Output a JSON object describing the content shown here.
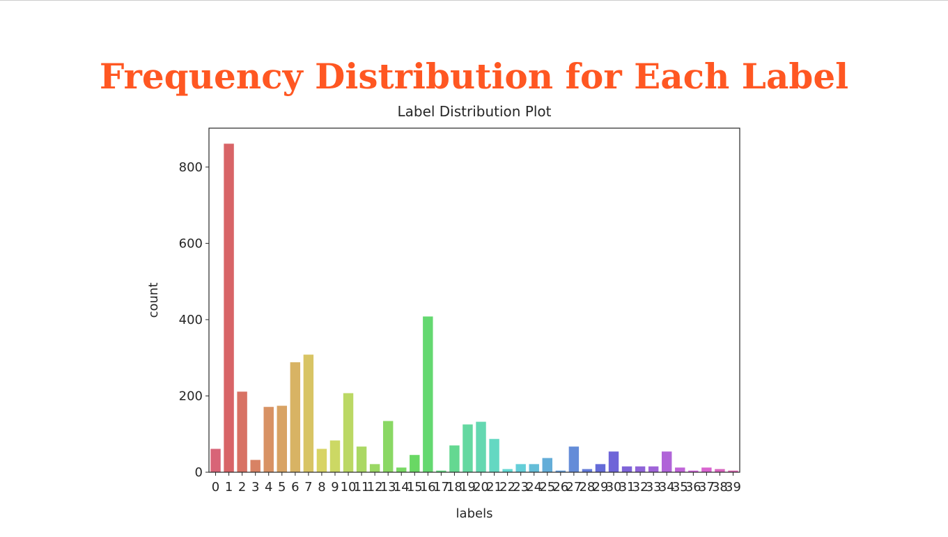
{
  "banner": {
    "title": "Frequency Distribution for Each Label",
    "color": "#FF5722"
  },
  "chart_data": {
    "type": "bar",
    "title": "Label Distribution Plot",
    "xlabel": "labels",
    "ylabel": "count",
    "ylim": [
      0,
      902
    ],
    "yticks": [
      0,
      200,
      400,
      600,
      800
    ],
    "grid": false,
    "palette": "husl",
    "categories": [
      "0",
      "1",
      "2",
      "3",
      "4",
      "5",
      "6",
      "7",
      "8",
      "9",
      "10",
      "11",
      "12",
      "13",
      "14",
      "15",
      "16",
      "17",
      "18",
      "19",
      "20",
      "21",
      "22",
      "23",
      "24",
      "25",
      "26",
      "27",
      "28",
      "29",
      "30",
      "31",
      "32",
      "33",
      "34",
      "35",
      "36",
      "37",
      "38",
      "39"
    ],
    "values": [
      62,
      862,
      212,
      33,
      172,
      175,
      289,
      309,
      62,
      84,
      208,
      68,
      22,
      135,
      13,
      46,
      409,
      5,
      71,
      126,
      133,
      88,
      9,
      22,
      22,
      38,
      5,
      68,
      9,
      22,
      55,
      16,
      16,
      16,
      55,
      13,
      5,
      13,
      9,
      5
    ]
  }
}
